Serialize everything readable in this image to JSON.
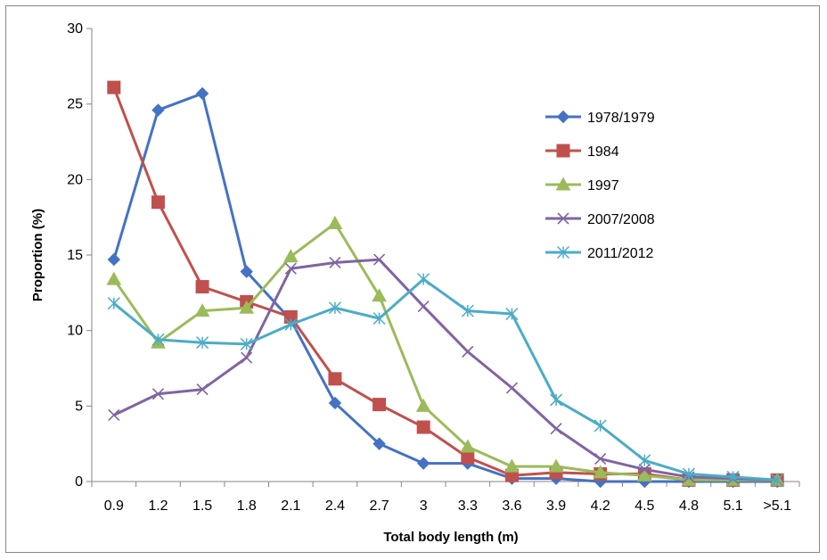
{
  "chart_data": {
    "type": "line",
    "title": "",
    "xlabel": "Total body length (m)",
    "ylabel": "Proportion (%)",
    "ylim": [
      0,
      30
    ],
    "yticks": [
      0,
      5,
      10,
      15,
      20,
      25,
      30
    ],
    "grid": false,
    "legend_position": "top-right",
    "categories": [
      "0.9",
      "1.2",
      "1.5",
      "1.8",
      "2.1",
      "2.4",
      "2.7",
      "3",
      "3.3",
      "3.6",
      "3.9",
      "4.2",
      "4.5",
      "4.8",
      "5.1",
      ">5.1"
    ],
    "series": [
      {
        "name": "1978/1979",
        "color": "#4472C4",
        "marker": "diamond",
        "values": [
          14.7,
          24.6,
          25.7,
          13.9,
          10.7,
          5.2,
          2.5,
          1.2,
          1.2,
          0.2,
          0.2,
          0.0,
          0.0,
          0.0,
          0.0,
          0.0
        ]
      },
      {
        "name": "1984",
        "color": "#C0504D",
        "marker": "square",
        "values": [
          26.1,
          18.5,
          12.9,
          11.9,
          10.9,
          6.8,
          5.1,
          3.6,
          1.6,
          0.4,
          0.6,
          0.5,
          0.5,
          0.1,
          0.1,
          0.1
        ]
      },
      {
        "name": "1997",
        "color": "#9BBB59",
        "marker": "triangle",
        "values": [
          13.4,
          9.2,
          11.3,
          11.5,
          14.9,
          17.1,
          12.3,
          5.0,
          2.3,
          1.0,
          1.0,
          0.6,
          0.4,
          0.1,
          0.1,
          0.1
        ]
      },
      {
        "name": "2007/2008",
        "color": "#8064A2",
        "marker": "x",
        "values": [
          4.4,
          5.8,
          6.1,
          8.2,
          14.1,
          14.5,
          14.7,
          11.6,
          8.6,
          6.2,
          3.5,
          1.5,
          0.8,
          0.3,
          0.2,
          0.1
        ]
      },
      {
        "name": "2011/2012",
        "color": "#4BACC6",
        "marker": "star",
        "values": [
          11.8,
          9.4,
          9.2,
          9.1,
          10.4,
          11.5,
          10.8,
          13.4,
          11.3,
          11.1,
          5.4,
          3.7,
          1.4,
          0.5,
          0.3,
          0.1
        ]
      }
    ]
  }
}
